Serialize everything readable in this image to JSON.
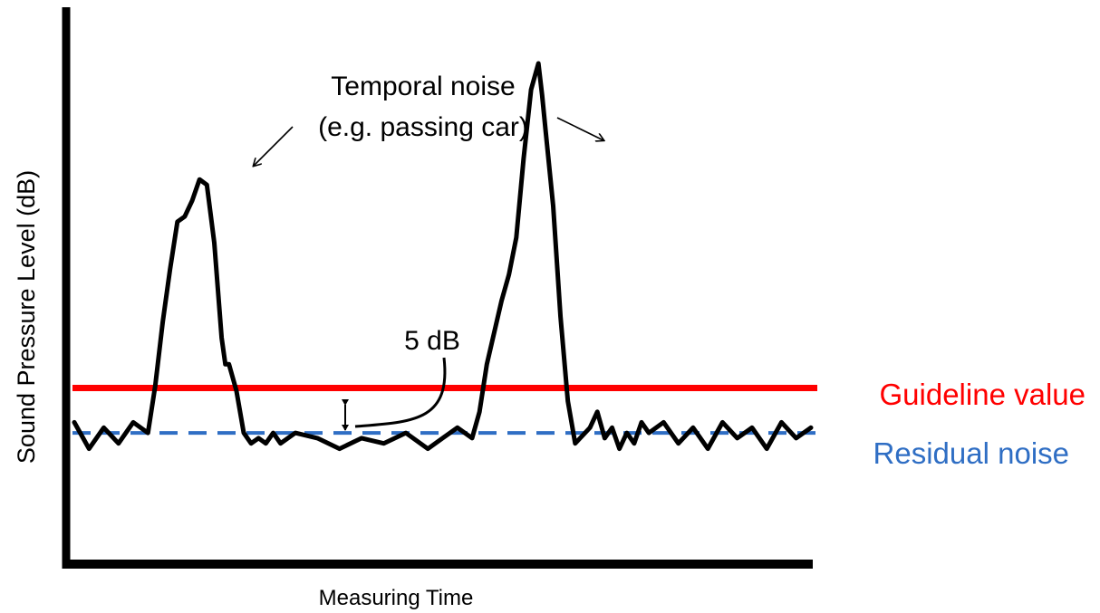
{
  "chart_data": {
    "type": "line",
    "xlabel": "Measuring Time",
    "ylabel": "Sound Pressure Level (dB)",
    "ticks": "none",
    "grid": false,
    "annotations": {
      "temporal_line1": "Temporal noise",
      "temporal_line2": "(e.g. passing car)",
      "delta": "5 dB"
    },
    "reference_lines": {
      "guideline": {
        "label": "Guideline value",
        "color": "#ff0000",
        "style": "solid",
        "level": 0.325
      },
      "residual": {
        "label": "Residual noise",
        "color": "#2f6ec4",
        "style": "dashed",
        "level": 0.24
      }
    },
    "series": [
      {
        "color": "#000000",
        "x": [
          0,
          0.02,
          0.04,
          0.06,
          0.08,
          0.1,
          0.11,
          0.12,
          0.13,
          0.14,
          0.15,
          0.16,
          0.17,
          0.18,
          0.19,
          0.2,
          0.205,
          0.21,
          0.22,
          0.23,
          0.24,
          0.25,
          0.26,
          0.27,
          0.28,
          0.3,
          0.33,
          0.36,
          0.39,
          0.42,
          0.45,
          0.48,
          0.5,
          0.52,
          0.54,
          0.55,
          0.56,
          0.57,
          0.58,
          0.59,
          0.6,
          0.61,
          0.62,
          0.63,
          0.635,
          0.64,
          0.65,
          0.66,
          0.67,
          0.68,
          0.7,
          0.71,
          0.72,
          0.73,
          0.74,
          0.75,
          0.76,
          0.77,
          0.78,
          0.8,
          0.82,
          0.84,
          0.86,
          0.88,
          0.9,
          0.92,
          0.94,
          0.96,
          0.98,
          1.0
        ],
        "y": [
          0.26,
          0.21,
          0.25,
          0.22,
          0.26,
          0.24,
          0.33,
          0.45,
          0.55,
          0.64,
          0.65,
          0.68,
          0.72,
          0.71,
          0.6,
          0.42,
          0.37,
          0.37,
          0.32,
          0.24,
          0.22,
          0.23,
          0.22,
          0.24,
          0.22,
          0.24,
          0.23,
          0.21,
          0.23,
          0.22,
          0.24,
          0.21,
          0.23,
          0.25,
          0.23,
          0.28,
          0.37,
          0.43,
          0.49,
          0.54,
          0.61,
          0.76,
          0.89,
          0.94,
          0.88,
          0.81,
          0.67,
          0.46,
          0.3,
          0.22,
          0.25,
          0.28,
          0.23,
          0.25,
          0.21,
          0.24,
          0.22,
          0.26,
          0.24,
          0.26,
          0.22,
          0.25,
          0.21,
          0.26,
          0.23,
          0.25,
          0.21,
          0.26,
          0.23,
          0.25
        ]
      }
    ]
  }
}
